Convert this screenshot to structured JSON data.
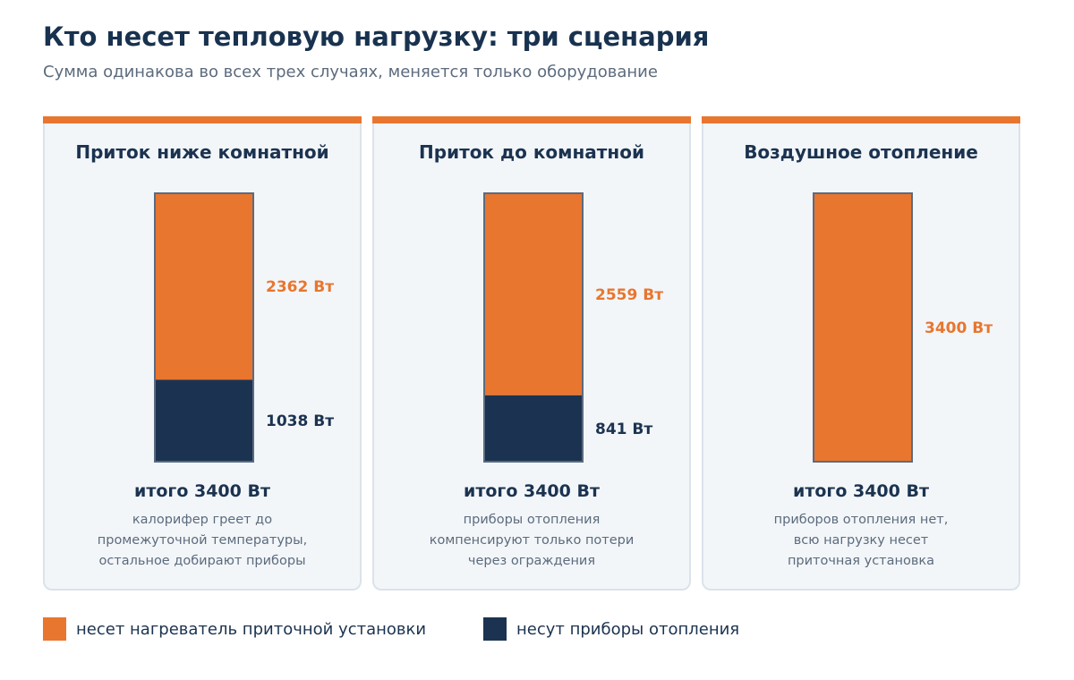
{
  "title": "Кто несет тепловую нагрузку: три сценария",
  "subtitle": "Сумма одинакова во всех трех случаях, меняется только оборудование",
  "colors": {
    "supply_heater": "#e8762f",
    "radiators": "#1b3350",
    "panel_bg": "#f3f6f9",
    "panel_border": "#dbe3ea"
  },
  "legend": [
    {
      "label": "несет нагреватель приточной установки",
      "color": "#e8762f"
    },
    {
      "label": "несут приборы отопления",
      "color": "#1b3350"
    }
  ],
  "chart_data": {
    "type": "bar",
    "stacked": true,
    "ylim": [
      0,
      3400
    ],
    "unit": "Вт",
    "panels": [
      {
        "title": "Приток ниже комнатной",
        "supply_heater": 2362,
        "radiators": 1038,
        "supply_label": "2362 Вт",
        "radiators_label": "1038 Вт",
        "total_label": "итого 3400 Вт",
        "note": [
          "калорифер греет до",
          "промежуточной температуры,",
          "остальное добирают приборы"
        ]
      },
      {
        "title": "Приток до комнатной",
        "supply_heater": 2559,
        "radiators": 841,
        "supply_label": "2559 Вт",
        "radiators_label": "841 Вт",
        "total_label": "итого 3400 Вт",
        "note": [
          "приборы отопления",
          "компенсируют только потери",
          "через ограждения"
        ]
      },
      {
        "title": "Воздушное отопление",
        "supply_heater": 3400,
        "radiators": 0,
        "supply_label": "3400 Вт",
        "radiators_label": "",
        "total_label": "итого 3400 Вт",
        "note": [
          "приборов отопления нет,",
          "всю нагрузку несет",
          "приточная установка"
        ]
      }
    ]
  }
}
